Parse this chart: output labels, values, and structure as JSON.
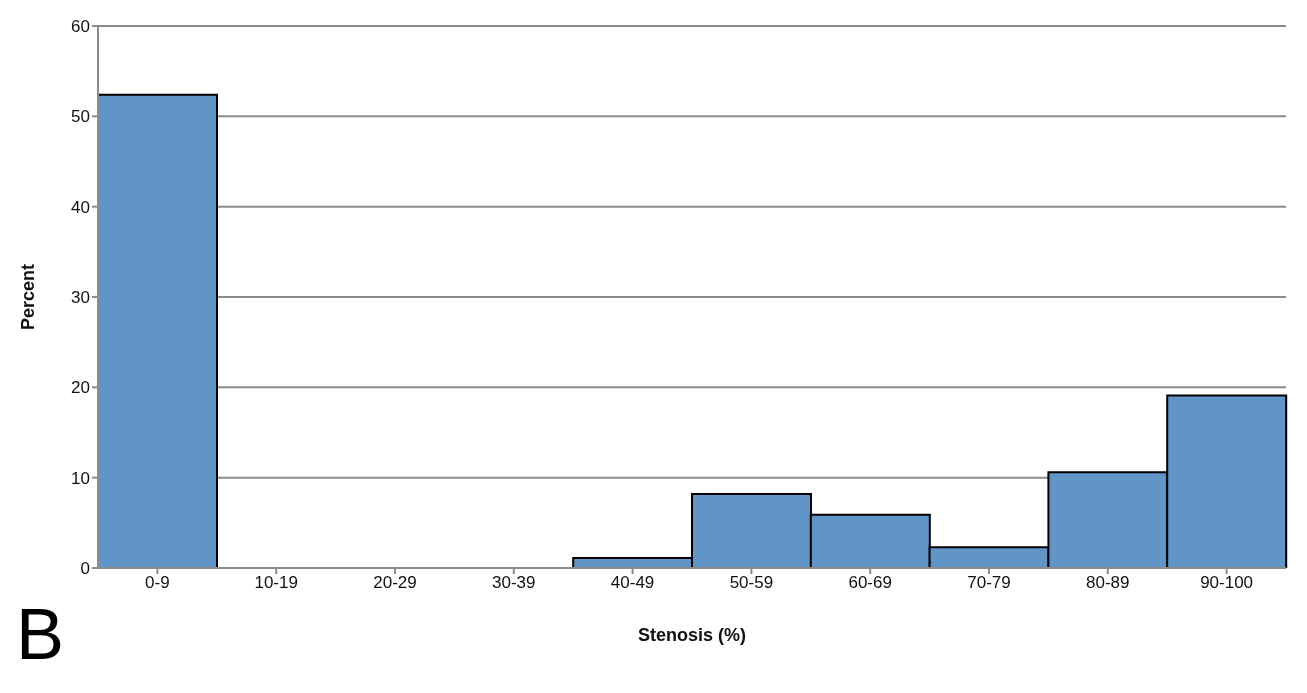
{
  "chart_data": {
    "type": "bar",
    "xlabel": "Stenosis (%)",
    "ylabel": "Percent",
    "categories": [
      "0-9",
      "10-19",
      "20-29",
      "30-39",
      "40-49",
      "50-59",
      "60-69",
      "70-79",
      "80-89",
      "90-100"
    ],
    "values": [
      52.4,
      0,
      0,
      0,
      1.1,
      8.2,
      5.9,
      2.3,
      10.6,
      19.1
    ],
    "color": "#6195c8",
    "ylim": [
      0,
      60
    ],
    "yticks": [
      0,
      10,
      20,
      30,
      40,
      50,
      60
    ],
    "grid": "y",
    "annotations": [
      "B"
    ]
  }
}
